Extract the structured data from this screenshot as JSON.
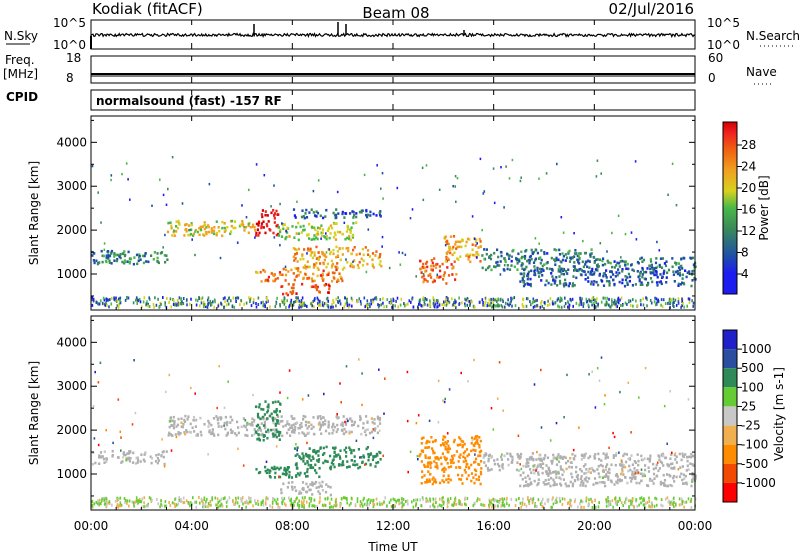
{
  "header": {
    "station": "Kodiak (fitACF)",
    "beam": "Beam 08",
    "date": "02/Jul/2016"
  },
  "top_panels": {
    "nsky_label": "N.Sky",
    "nsearch_label": "N.Search",
    "nsky_ticks": [
      "10^5",
      "10^0"
    ],
    "nsearch_ticks": [
      "10^5",
      "10^0"
    ],
    "freq_label": "Freq.",
    "freq_unit": "[MHz]",
    "freq_ticks": [
      "18",
      "8"
    ],
    "nave_label": "Nave",
    "nave_ticks": [
      "60",
      "0"
    ],
    "cpid_label": "CPID",
    "cpid_text": "normalsound (fast) -157 RF"
  },
  "colors": {
    "power_scale": [
      "#1c1cf0",
      "#1e4fa8",
      "#3a8a5a",
      "#48b848",
      "#d8d020",
      "#f0a020",
      "#f06010",
      "#f02020",
      "#d40000"
    ],
    "velocity_scale": [
      "#ff0000",
      "#f24a00",
      "#ff8c00",
      "#f0b050",
      "#c8c8c8",
      "#66cc33",
      "#2e8b57",
      "#2a4fa0",
      "#2020c8"
    ],
    "ground_scatter": "#b0b0b0"
  },
  "chart_data": [
    {
      "type": "heatmap",
      "name": "power",
      "ylabel": "Slant Range [km]",
      "yticks": [
        1000,
        2000,
        3000,
        4000
      ],
      "ylim": [
        180,
        4600
      ],
      "x_tick_labels": [
        "00:00",
        "04:00",
        "08:00",
        "12:00",
        "16:00",
        "20:00",
        "00:00"
      ],
      "xlim_hours": [
        0,
        24
      ],
      "colorbar": {
        "label": "Power [dB]",
        "ticks": [
          "28",
          "24",
          "20",
          "16",
          "12",
          "8",
          "4"
        ],
        "range": [
          0,
          30
        ]
      },
      "regions": [
        {
          "t0": 0.0,
          "t1": 3.0,
          "r0": 1250,
          "r1": 1550,
          "value": 8
        },
        {
          "t0": 3.0,
          "t1": 6.5,
          "r0": 1900,
          "r1": 2250,
          "value": 16
        },
        {
          "t0": 6.5,
          "t1": 7.4,
          "r0": 1900,
          "r1": 2500,
          "value": 28
        },
        {
          "t0": 7.4,
          "t1": 10.5,
          "r0": 1800,
          "r1": 2200,
          "value": 14
        },
        {
          "t0": 8.0,
          "t1": 11.5,
          "r0": 1150,
          "r1": 1650,
          "value": 18
        },
        {
          "t0": 6.5,
          "t1": 10.0,
          "r0": 850,
          "r1": 1150,
          "value": 20
        },
        {
          "t0": 7.5,
          "t1": 9.5,
          "r0": 550,
          "r1": 800,
          "value": 24
        },
        {
          "t0": 8.0,
          "t1": 11.5,
          "r0": 2300,
          "r1": 2500,
          "value": 6
        },
        {
          "t0": 13.0,
          "t1": 14.5,
          "r0": 800,
          "r1": 1400,
          "value": 22
        },
        {
          "t0": 14.0,
          "t1": 15.5,
          "r0": 1300,
          "r1": 1900,
          "value": 18
        },
        {
          "t0": 15.5,
          "t1": 20.0,
          "r0": 1100,
          "r1": 1600,
          "value": 7
        },
        {
          "t0": 17.0,
          "t1": 24.0,
          "r0": 750,
          "r1": 1150,
          "value": 6
        },
        {
          "t0": 20.0,
          "t1": 24.0,
          "r0": 1150,
          "r1": 1400,
          "value": 7
        }
      ]
    },
    {
      "type": "heatmap",
      "name": "velocity",
      "ylabel": "Slant Range [km]",
      "yticks": [
        1000,
        2000,
        3000,
        4000
      ],
      "ylim": [
        180,
        4600
      ],
      "x_tick_labels": [
        "00:00",
        "04:00",
        "08:00",
        "12:00",
        "16:00",
        "20:00",
        "00:00"
      ],
      "xlabel": "Time UT",
      "xlim_hours": [
        0,
        24
      ],
      "colorbar": {
        "label": "Velocity [m s-1]",
        "ticks": [
          "1000",
          "500",
          "100",
          "25",
          "-25",
          "-100",
          "-500",
          "-1000"
        ],
        "range": [
          -1000,
          1000
        ]
      },
      "regions": [
        {
          "t0": 0.0,
          "t1": 3.0,
          "r0": 1250,
          "r1": 1550,
          "value": 0,
          "ground": true
        },
        {
          "t0": 3.0,
          "t1": 11.5,
          "r0": 1900,
          "r1": 2350,
          "value": 0,
          "ground": true
        },
        {
          "t0": 6.5,
          "t1": 7.5,
          "r0": 1800,
          "r1": 2700,
          "value": 150
        },
        {
          "t0": 8.0,
          "t1": 11.5,
          "r0": 1150,
          "r1": 1650,
          "value": 400
        },
        {
          "t0": 6.5,
          "t1": 9.5,
          "r0": 950,
          "r1": 1200,
          "value": 150
        },
        {
          "t0": 7.5,
          "t1": 9.5,
          "r0": 550,
          "r1": 850,
          "value": 0,
          "ground": true
        },
        {
          "t0": 13.0,
          "t1": 15.5,
          "r0": 800,
          "r1": 1900,
          "value": -300
        },
        {
          "t0": 15.5,
          "t1": 24.0,
          "r0": 1100,
          "r1": 1500,
          "value": 0,
          "ground": true
        },
        {
          "t0": 17.0,
          "t1": 24.0,
          "r0": 750,
          "r1": 1100,
          "value": 0,
          "ground": true
        }
      ]
    }
  ]
}
